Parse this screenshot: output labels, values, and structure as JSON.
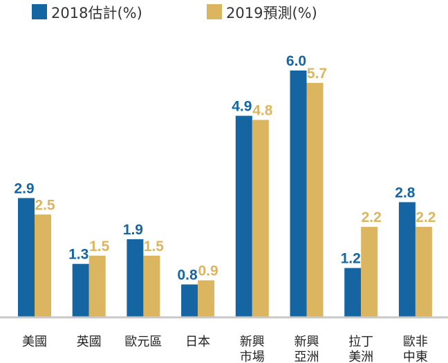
{
  "chart_data": {
    "type": "bar",
    "categories": [
      [
        "美國"
      ],
      [
        "英國"
      ],
      [
        "歐元區"
      ],
      [
        "日本"
      ],
      [
        "新興",
        "市場"
      ],
      [
        "新興",
        "亞洲"
      ],
      [
        "拉丁",
        "美洲"
      ],
      [
        "歐非",
        "中東"
      ]
    ],
    "series": [
      {
        "name": "2018估計(%)",
        "values": [
          2.9,
          1.3,
          1.9,
          0.8,
          4.9,
          6.0,
          1.2,
          2.8
        ],
        "labels": [
          "2.9",
          "1.3",
          "1.9",
          "0.8",
          "4.9",
          "6.0",
          "1.2",
          "2.8"
        ],
        "color": "#1565a3"
      },
      {
        "name": "2019預測(%)",
        "values": [
          2.5,
          1.5,
          1.5,
          0.9,
          4.8,
          5.7,
          2.2,
          2.2
        ],
        "labels": [
          "2.5",
          "1.5",
          "1.5",
          "0.9",
          "4.8",
          "5.7",
          "2.2",
          "2.2"
        ],
        "color": "#dbb55f"
      }
    ],
    "ylim": [
      0,
      6
    ],
    "grid": false,
    "legend": "top-left"
  }
}
